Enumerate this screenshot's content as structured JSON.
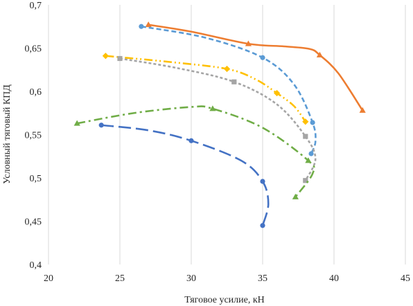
{
  "chart_data": {
    "type": "line",
    "title": "",
    "xlabel": "Тяговое усилие, кН",
    "ylabel": "Условный тяговый КПД",
    "xlim": [
      20,
      45
    ],
    "ylim": [
      0.4,
      0.7
    ],
    "x_ticks": [
      "20",
      "25",
      "30",
      "35",
      "40",
      "45"
    ],
    "y_ticks": [
      "0,4",
      "0,45",
      "0,5",
      "0,55",
      "0,6",
      "0,65",
      "0,7"
    ],
    "grid": "vertical",
    "legend": "none",
    "series": [
      {
        "color": "#ed7d31",
        "line_style": "solid",
        "marker": "triangle",
        "points": [
          [
            27.0,
            0.677
          ],
          [
            34.0,
            0.655
          ],
          [
            39.0,
            0.642
          ],
          [
            42.0,
            0.578
          ]
        ],
        "curve": [
          [
            27.0,
            0.677
          ],
          [
            30.0,
            0.669
          ],
          [
            34.0,
            0.655
          ],
          [
            36.5,
            0.652
          ],
          [
            38.3,
            0.649
          ],
          [
            39.0,
            0.642
          ],
          [
            40.3,
            0.621
          ],
          [
            42.0,
            0.578
          ]
        ]
      },
      {
        "color": "#5b9bd5",
        "line_style": "dashed",
        "marker": "circle",
        "points": [
          [
            26.5,
            0.675
          ],
          [
            35.0,
            0.639
          ],
          [
            38.5,
            0.564
          ],
          [
            38.4,
            0.528
          ]
        ],
        "curve": [
          [
            26.5,
            0.675
          ],
          [
            31.0,
            0.662
          ],
          [
            35.0,
            0.639
          ],
          [
            37.2,
            0.608
          ],
          [
            38.5,
            0.564
          ],
          [
            38.7,
            0.542
          ],
          [
            38.4,
            0.528
          ]
        ]
      },
      {
        "color": "#ffc000",
        "line_style": "dash-dot-dot",
        "marker": "diamond",
        "points": [
          [
            24.0,
            0.641
          ],
          [
            32.5,
            0.626
          ],
          [
            36.0,
            0.598
          ],
          [
            38.0,
            0.565
          ]
        ],
        "curve": [
          [
            24.0,
            0.641
          ],
          [
            28.5,
            0.634
          ],
          [
            32.5,
            0.626
          ],
          [
            34.5,
            0.614
          ],
          [
            36.0,
            0.598
          ],
          [
            37.2,
            0.583
          ],
          [
            38.0,
            0.565
          ]
        ]
      },
      {
        "color": "#a5a5a5",
        "line_style": "dotted",
        "marker": "square",
        "points": [
          [
            25.0,
            0.638
          ],
          [
            33.0,
            0.611
          ],
          [
            38.0,
            0.548
          ],
          [
            38.0,
            0.497
          ]
        ],
        "curve": [
          [
            25.0,
            0.638
          ],
          [
            29.0,
            0.627
          ],
          [
            33.0,
            0.611
          ],
          [
            36.0,
            0.585
          ],
          [
            38.0,
            0.548
          ],
          [
            38.7,
            0.522
          ],
          [
            38.0,
            0.497
          ]
        ]
      },
      {
        "color": "#70ad47",
        "line_style": "dash-dot",
        "marker": "triangle",
        "points": [
          [
            22.0,
            0.563
          ],
          [
            31.5,
            0.58
          ],
          [
            38.2,
            0.52
          ],
          [
            37.3,
            0.478
          ]
        ],
        "curve": [
          [
            22.0,
            0.563
          ],
          [
            26.0,
            0.575
          ],
          [
            30.0,
            0.582
          ],
          [
            31.5,
            0.58
          ],
          [
            35.0,
            0.558
          ],
          [
            38.2,
            0.52
          ],
          [
            38.5,
            0.505
          ],
          [
            37.3,
            0.478
          ]
        ]
      },
      {
        "color": "#4472c4",
        "line_style": "long-dash",
        "marker": "circle",
        "points": [
          [
            23.7,
            0.561
          ],
          [
            30.0,
            0.543
          ],
          [
            35.0,
            0.496
          ],
          [
            35.0,
            0.445
          ]
        ],
        "curve": [
          [
            23.7,
            0.561
          ],
          [
            27.0,
            0.555
          ],
          [
            30.0,
            0.543
          ],
          [
            33.5,
            0.52
          ],
          [
            35.0,
            0.496
          ],
          [
            35.4,
            0.47
          ],
          [
            35.0,
            0.445
          ]
        ]
      }
    ]
  }
}
